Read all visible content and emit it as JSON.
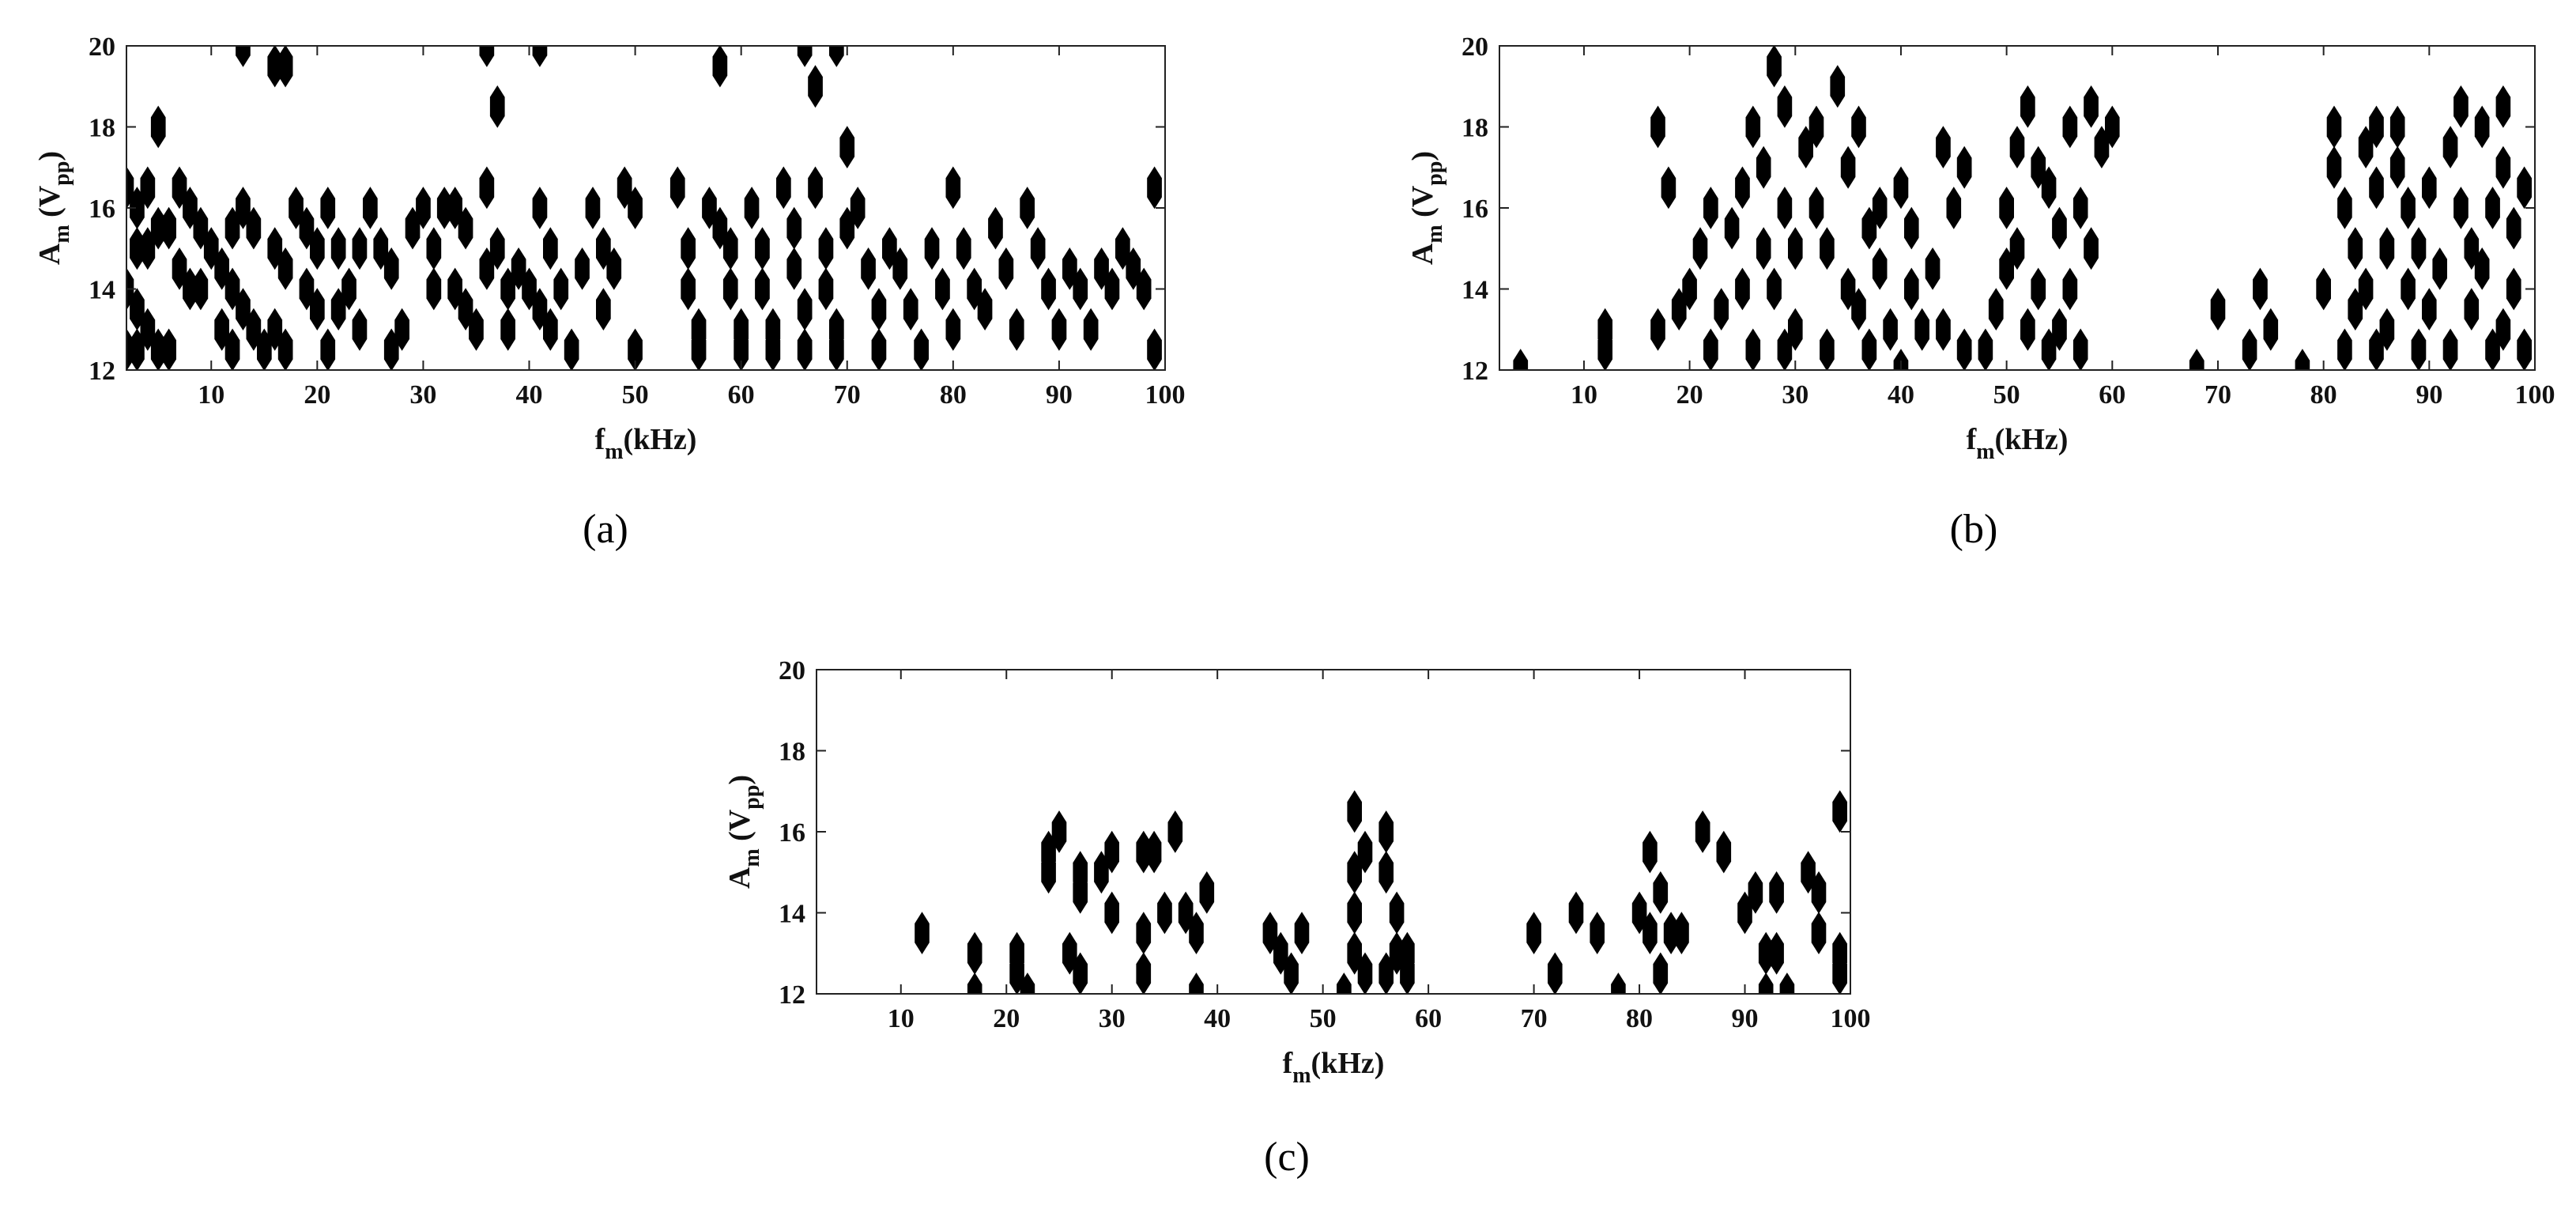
{
  "chart_data": [
    {
      "type": "scatter",
      "panel_label": "(a)",
      "xlabel": {
        "main": "f",
        "sub": "m",
        "rest": "(kHz)"
      },
      "ylabel": {
        "main": "A",
        "sub": "m",
        "mid": " (V",
        "sub2": "pp",
        "end": ")"
      },
      "xlim": [
        2,
        100
      ],
      "ylim": [
        12,
        20
      ],
      "xticks": [
        10,
        20,
        30,
        40,
        50,
        60,
        70,
        80,
        90,
        100
      ],
      "yticks": [
        12,
        14,
        16,
        18,
        20
      ],
      "marker": "filled-diamond-contour",
      "color": "#000000",
      "points": [
        [
          13,
          20
        ],
        [
          16,
          19.5
        ],
        [
          17,
          19.5
        ],
        [
          36,
          20
        ],
        [
          37,
          18.5
        ],
        [
          41,
          20
        ],
        [
          58,
          19.5
        ],
        [
          66,
          20
        ],
        [
          67,
          19
        ],
        [
          69,
          20
        ],
        [
          70,
          17.5
        ],
        [
          5,
          18
        ],
        [
          2,
          16.5
        ],
        [
          3,
          16
        ],
        [
          4,
          16.5
        ],
        [
          3,
          15
        ],
        [
          4,
          15
        ],
        [
          5,
          15.5
        ],
        [
          6,
          15.5
        ],
        [
          7,
          16.5
        ],
        [
          8,
          16
        ],
        [
          9,
          15.5
        ],
        [
          10,
          15
        ],
        [
          7,
          14.5
        ],
        [
          8,
          14
        ],
        [
          9,
          14
        ],
        [
          2,
          14
        ],
        [
          3,
          13.5
        ],
        [
          4,
          13
        ],
        [
          5,
          12.5
        ],
        [
          6,
          12.5
        ],
        [
          2,
          12.5
        ],
        [
          3,
          12.5
        ],
        [
          12,
          15.5
        ],
        [
          13,
          16
        ],
        [
          14,
          15.5
        ],
        [
          11,
          14.5
        ],
        [
          12,
          14
        ],
        [
          13,
          13.5
        ],
        [
          14,
          13
        ],
        [
          15,
          12.5
        ],
        [
          11,
          13
        ],
        [
          12,
          12.5
        ],
        [
          16,
          15
        ],
        [
          17,
          14.5
        ],
        [
          17,
          12.5
        ],
        [
          16,
          13
        ],
        [
          18,
          16
        ],
        [
          19,
          15.5
        ],
        [
          20,
          15
        ],
        [
          19,
          14
        ],
        [
          20,
          13.5
        ],
        [
          21,
          12.5
        ],
        [
          21,
          16
        ],
        [
          22,
          15
        ],
        [
          23,
          14
        ],
        [
          22,
          13.5
        ],
        [
          24,
          13
        ],
        [
          24,
          15
        ],
        [
          25,
          16
        ],
        [
          26,
          15
        ],
        [
          27,
          14.5
        ],
        [
          27,
          12.5
        ],
        [
          28,
          13
        ],
        [
          29,
          15.5
        ],
        [
          30,
          16
        ],
        [
          31,
          15
        ],
        [
          31,
          14
        ],
        [
          32,
          16
        ],
        [
          33,
          16
        ],
        [
          34,
          15.5
        ],
        [
          33,
          14
        ],
        [
          34,
          13.5
        ],
        [
          35,
          13
        ],
        [
          36,
          14.5
        ],
        [
          36,
          16.5
        ],
        [
          37,
          15
        ],
        [
          38,
          14
        ],
        [
          38,
          13
        ],
        [
          39,
          14.5
        ],
        [
          40,
          14
        ],
        [
          41,
          13.5
        ],
        [
          41,
          16
        ],
        [
          42,
          15
        ],
        [
          42,
          13
        ],
        [
          43,
          14
        ],
        [
          44,
          12.5
        ],
        [
          45,
          14.5
        ],
        [
          46,
          16
        ],
        [
          47,
          15
        ],
        [
          47,
          13.5
        ],
        [
          48,
          14.5
        ],
        [
          49,
          16.5
        ],
        [
          50,
          16
        ],
        [
          50,
          12.5
        ],
        [
          54,
          16.5
        ],
        [
          55,
          15
        ],
        [
          55,
          14
        ],
        [
          56,
          13
        ],
        [
          56,
          12.5
        ],
        [
          57,
          16
        ],
        [
          58,
          15.5
        ],
        [
          59,
          15
        ],
        [
          59,
          14
        ],
        [
          60,
          13
        ],
        [
          60,
          12.5
        ],
        [
          61,
          16
        ],
        [
          62,
          15
        ],
        [
          62,
          14
        ],
        [
          63,
          13
        ],
        [
          63,
          12.5
        ],
        [
          64,
          16.5
        ],
        [
          65,
          15.5
        ],
        [
          65,
          14.5
        ],
        [
          66,
          13.5
        ],
        [
          66,
          12.5
        ],
        [
          67,
          16.5
        ],
        [
          68,
          15
        ],
        [
          68,
          14
        ],
        [
          69,
          13
        ],
        [
          69,
          12.5
        ],
        [
          70,
          15.5
        ],
        [
          71,
          16
        ],
        [
          72,
          14.5
        ],
        [
          73,
          13.5
        ],
        [
          73,
          12.5
        ],
        [
          74,
          15
        ],
        [
          75,
          14.5
        ],
        [
          76,
          13.5
        ],
        [
          77,
          12.5
        ],
        [
          78,
          15
        ],
        [
          79,
          14
        ],
        [
          80,
          13
        ],
        [
          80,
          16.5
        ],
        [
          81,
          15
        ],
        [
          82,
          14
        ],
        [
          83,
          13.5
        ],
        [
          84,
          15.5
        ],
        [
          85,
          14.5
        ],
        [
          86,
          13
        ],
        [
          87,
          16
        ],
        [
          88,
          15
        ],
        [
          89,
          14
        ],
        [
          90,
          13
        ],
        [
          91,
          14.5
        ],
        [
          92,
          14
        ],
        [
          93,
          13
        ],
        [
          94,
          14.5
        ],
        [
          95,
          14
        ],
        [
          96,
          15
        ],
        [
          97,
          14.5
        ],
        [
          98,
          14
        ],
        [
          99,
          16.5
        ],
        [
          99,
          12.5
        ]
      ]
    },
    {
      "type": "scatter",
      "panel_label": "(b)",
      "xlabel": {
        "main": "f",
        "sub": "m",
        "rest": "(kHz)"
      },
      "ylabel": {
        "main": "A",
        "sub": "m",
        "mid": " (V",
        "sub2": "pp",
        "end": ")"
      },
      "xlim": [
        2,
        100
      ],
      "ylim": [
        12,
        20
      ],
      "xticks": [
        10,
        20,
        30,
        40,
        50,
        60,
        70,
        80,
        90,
        100
      ],
      "yticks": [
        12,
        14,
        16,
        18,
        20
      ],
      "marker": "filled-diamond-contour",
      "color": "#000000",
      "points": [
        [
          4,
          12
        ],
        [
          12,
          13
        ],
        [
          12,
          12.5
        ],
        [
          17,
          18
        ],
        [
          18,
          16.5
        ],
        [
          17,
          13
        ],
        [
          19,
          13.5
        ],
        [
          20,
          14
        ],
        [
          22,
          16
        ],
        [
          21,
          15
        ],
        [
          22,
          12.5
        ],
        [
          23,
          13.5
        ],
        [
          24,
          15.5
        ],
        [
          25,
          16.5
        ],
        [
          25,
          14
        ],
        [
          26,
          18
        ],
        [
          26,
          12.5
        ],
        [
          27,
          17
        ],
        [
          27,
          15
        ],
        [
          28,
          19.5
        ],
        [
          28,
          14
        ],
        [
          29,
          18.5
        ],
        [
          29,
          16
        ],
        [
          30,
          15
        ],
        [
          29,
          12.5
        ],
        [
          30,
          13
        ],
        [
          31,
          17.5
        ],
        [
          32,
          18
        ],
        [
          32,
          16
        ],
        [
          33,
          15
        ],
        [
          33,
          12.5
        ],
        [
          34,
          19
        ],
        [
          35,
          17
        ],
        [
          35,
          14
        ],
        [
          36,
          13.5
        ],
        [
          36,
          18
        ],
        [
          37,
          15.5
        ],
        [
          38,
          16
        ],
        [
          38,
          14.5
        ],
        [
          37,
          12.5
        ],
        [
          39,
          13
        ],
        [
          40,
          16.5
        ],
        [
          40,
          12
        ],
        [
          41,
          15.5
        ],
        [
          41,
          14
        ],
        [
          42,
          13
        ],
        [
          43,
          14.5
        ],
        [
          44,
          17.5
        ],
        [
          44,
          13
        ],
        [
          45,
          16
        ],
        [
          46,
          17
        ],
        [
          46,
          12.5
        ],
        [
          48,
          12.5
        ],
        [
          49,
          13.5
        ],
        [
          50,
          14.5
        ],
        [
          50,
          16
        ],
        [
          51,
          15
        ],
        [
          51,
          17.5
        ],
        [
          52,
          18.5
        ],
        [
          52,
          13
        ],
        [
          53,
          17
        ],
        [
          53,
          14
        ],
        [
          54,
          16.5
        ],
        [
          54,
          12.5
        ],
        [
          55,
          15.5
        ],
        [
          55,
          13
        ],
        [
          56,
          18
        ],
        [
          56,
          14
        ],
        [
          57,
          16
        ],
        [
          57,
          12.5
        ],
        [
          58,
          18.5
        ],
        [
          58,
          15
        ],
        [
          59,
          17.5
        ],
        [
          60,
          18
        ],
        [
          68,
          12
        ],
        [
          70,
          13.5
        ],
        [
          73,
          12.5
        ],
        [
          74,
          14
        ],
        [
          75,
          13
        ],
        [
          78,
          12
        ],
        [
          80,
          14
        ],
        [
          81,
          17
        ],
        [
          81,
          18
        ],
        [
          82,
          16
        ],
        [
          82,
          12.5
        ],
        [
          83,
          15
        ],
        [
          83,
          13.5
        ],
        [
          84,
          17.5
        ],
        [
          84,
          14
        ],
        [
          85,
          18
        ],
        [
          85,
          16.5
        ],
        [
          85,
          12.5
        ],
        [
          86,
          15
        ],
        [
          86,
          13
        ],
        [
          87,
          18
        ],
        [
          87,
          17
        ],
        [
          88,
          16
        ],
        [
          88,
          14
        ],
        [
          89,
          15
        ],
        [
          89,
          12.5
        ],
        [
          90,
          16.5
        ],
        [
          90,
          13.5
        ],
        [
          91,
          14.5
        ],
        [
          92,
          17.5
        ],
        [
          92,
          12.5
        ],
        [
          93,
          18.5
        ],
        [
          93,
          16
        ],
        [
          94,
          15
        ],
        [
          94,
          13.5
        ],
        [
          95,
          18
        ],
        [
          95,
          14.5
        ],
        [
          96,
          16
        ],
        [
          96,
          12.5
        ],
        [
          97,
          18.5
        ],
        [
          97,
          17
        ],
        [
          97,
          13
        ],
        [
          98,
          15.5
        ],
        [
          98,
          14
        ],
        [
          99,
          16.5
        ],
        [
          99,
          12.5
        ]
      ]
    },
    {
      "type": "scatter",
      "panel_label": "(c)",
      "xlabel": {
        "main": "f",
        "sub": "m",
        "rest": "(kHz)"
      },
      "ylabel": {
        "main": "A",
        "sub": "m",
        "mid": " (V",
        "sub2": "pp",
        "end": ")"
      },
      "xlim": [
        2,
        100
      ],
      "ylim": [
        12,
        20
      ],
      "xticks": [
        10,
        20,
        30,
        40,
        50,
        60,
        70,
        80,
        90,
        100
      ],
      "yticks": [
        12,
        14,
        16,
        18,
        20
      ],
      "marker": "filled-diamond-contour",
      "color": "#000000",
      "points": [
        [
          12,
          13.5
        ],
        [
          17,
          13
        ],
        [
          17,
          12
        ],
        [
          21,
          13
        ],
        [
          21,
          12.5
        ],
        [
          22,
          12
        ],
        [
          24,
          15.5
        ],
        [
          24,
          15
        ],
        [
          25,
          16
        ],
        [
          27,
          15
        ],
        [
          27,
          14.5
        ],
        [
          26,
          13
        ],
        [
          27,
          12.5
        ],
        [
          29,
          15
        ],
        [
          30,
          14
        ],
        [
          30,
          15.5
        ],
        [
          33,
          15.5
        ],
        [
          33,
          13.5
        ],
        [
          33,
          12.5
        ],
        [
          34,
          15.5
        ],
        [
          35,
          14
        ],
        [
          36,
          16
        ],
        [
          37,
          14
        ],
        [
          38,
          13.5
        ],
        [
          38,
          12
        ],
        [
          39,
          14.5
        ],
        [
          45,
          13.5
        ],
        [
          46,
          13
        ],
        [
          47,
          12.5
        ],
        [
          48,
          13.5
        ],
        [
          52,
          12
        ],
        [
          53,
          16.5
        ],
        [
          53,
          15
        ],
        [
          53,
          14
        ],
        [
          53,
          13
        ],
        [
          54,
          15.5
        ],
        [
          54,
          12.5
        ],
        [
          56,
          16
        ],
        [
          56,
          15
        ],
        [
          57,
          14
        ],
        [
          57,
          13
        ],
        [
          56,
          12.5
        ],
        [
          58,
          13
        ],
        [
          58,
          12.5
        ],
        [
          70,
          13.5
        ],
        [
          72,
          12.5
        ],
        [
          74,
          14
        ],
        [
          76,
          13.5
        ],
        [
          78,
          12
        ],
        [
          80,
          14
        ],
        [
          81,
          15.5
        ],
        [
          81,
          13.5
        ],
        [
          82,
          14.5
        ],
        [
          82,
          12.5
        ],
        [
          83,
          13.5
        ],
        [
          84,
          13.5
        ],
        [
          86,
          16
        ],
        [
          88,
          15.5
        ],
        [
          90,
          14
        ],
        [
          91,
          14.5
        ],
        [
          92,
          13
        ],
        [
          92,
          12
        ],
        [
          93,
          14.5
        ],
        [
          93,
          13
        ],
        [
          94,
          12
        ],
        [
          96,
          15
        ],
        [
          97,
          14.5
        ],
        [
          97,
          13.5
        ],
        [
          99,
          16.5
        ],
        [
          99,
          13
        ],
        [
          99,
          12.5
        ]
      ]
    }
  ]
}
